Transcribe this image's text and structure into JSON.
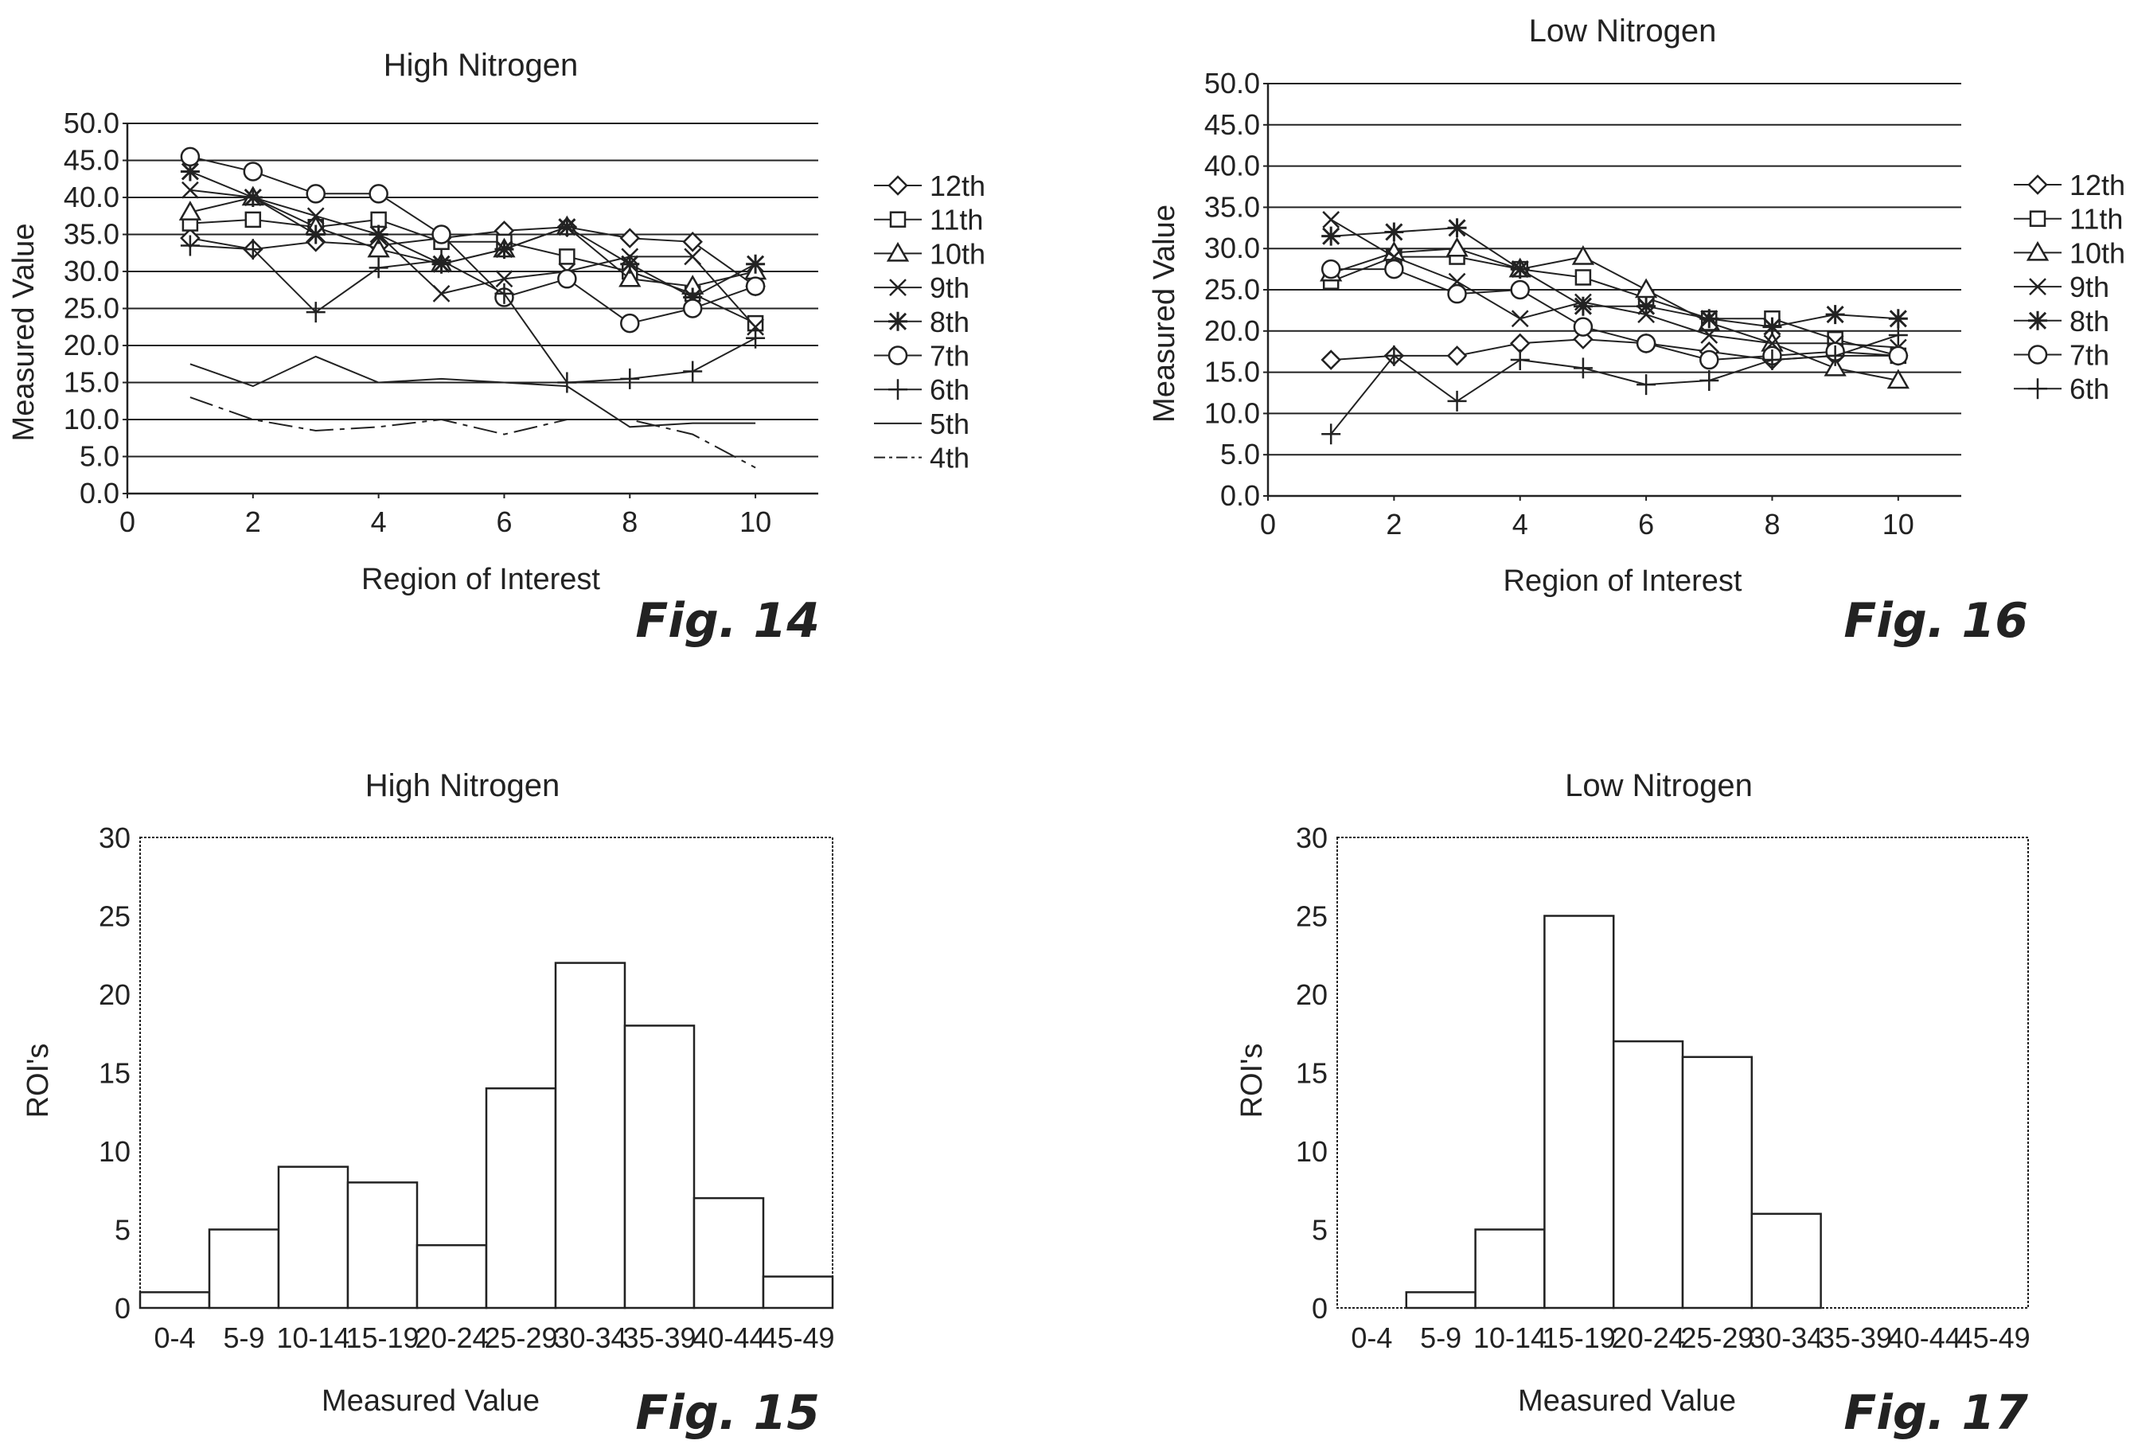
{
  "chart_data": [
    {
      "id": "fig14",
      "type": "line",
      "figure_label": "Fig. 14",
      "title": "High Nitrogen",
      "xlabel": "Region of Interest",
      "ylabel": "Measured Value",
      "xlim": [
        0,
        11
      ],
      "ylim": [
        0,
        50
      ],
      "xticks": [
        "0",
        "2",
        "4",
        "6",
        "8",
        "10"
      ],
      "xtick_values": [
        0,
        2,
        4,
        6,
        8,
        10
      ],
      "yticks": [
        "0.0",
        "5.0",
        "10.0",
        "15.0",
        "20.0",
        "25.0",
        "30.0",
        "35.0",
        "40.0",
        "45.0",
        "50.0"
      ],
      "ytick_values": [
        0,
        5,
        10,
        15,
        20,
        25,
        30,
        35,
        40,
        45,
        50
      ],
      "legend_position": "right",
      "grid": true,
      "x": [
        1,
        2,
        3,
        4,
        5,
        6,
        7,
        8,
        9,
        10
      ],
      "series": [
        {
          "name": "12th",
          "marker": "diamond",
          "values": [
            34.5,
            33.0,
            34.0,
            33.5,
            34.5,
            35.5,
            36.0,
            34.5,
            34.0,
            28.0
          ]
        },
        {
          "name": "11th",
          "marker": "square",
          "values": [
            36.5,
            37.0,
            36.0,
            37.0,
            34.0,
            34.0,
            32.0,
            30.0,
            27.0,
            23.0
          ]
        },
        {
          "name": "10th",
          "marker": "triangle",
          "values": [
            38.0,
            40.0,
            36.0,
            33.0,
            31.0,
            33.0,
            36.0,
            29.0,
            28.0,
            30.0
          ]
        },
        {
          "name": "9th",
          "marker": "x",
          "values": [
            41.0,
            40.0,
            37.5,
            35.0,
            27.0,
            29.0,
            30.0,
            32.0,
            32.0,
            22.5
          ]
        },
        {
          "name": "8th",
          "marker": "star",
          "values": [
            43.5,
            40.0,
            35.0,
            35.0,
            31.0,
            33.0,
            36.0,
            31.0,
            26.5,
            31.0
          ]
        },
        {
          "name": "7th",
          "marker": "circle",
          "values": [
            45.5,
            43.5,
            40.5,
            40.5,
            35.0,
            26.5,
            29.0,
            23.0,
            25.0,
            28.0
          ]
        },
        {
          "name": "6th",
          "marker": "plus",
          "values": [
            33.5,
            33.0,
            24.5,
            30.5,
            31.5,
            27.0,
            15.0,
            15.5,
            16.5,
            21.0
          ]
        },
        {
          "name": "5th",
          "marker": "none",
          "dash": "none",
          "values": [
            17.5,
            14.5,
            18.5,
            15.0,
            15.5,
            15.0,
            14.5,
            9.0,
            9.5,
            9.5
          ]
        },
        {
          "name": "4th",
          "marker": "none",
          "dash": "long-short",
          "values": [
            13.0,
            10.0,
            8.5,
            9.0,
            10.0,
            8.0,
            10.0,
            10.0,
            8.0,
            3.5
          ]
        }
      ]
    },
    {
      "id": "fig16",
      "type": "line",
      "figure_label": "Fig. 16",
      "title": "Low Nitrogen",
      "xlabel": "Region of Interest",
      "ylabel": "Measured Value",
      "xlim": [
        0,
        11
      ],
      "ylim": [
        0,
        50
      ],
      "xticks": [
        "0",
        "2",
        "4",
        "6",
        "8",
        "10"
      ],
      "xtick_values": [
        0,
        2,
        4,
        6,
        8,
        10
      ],
      "yticks": [
        "0.0",
        "5.0",
        "10.0",
        "15.0",
        "20.0",
        "25.0",
        "30.0",
        "35.0",
        "40.0",
        "45.0",
        "50.0"
      ],
      "ytick_values": [
        0,
        5,
        10,
        15,
        20,
        25,
        30,
        35,
        40,
        45,
        50
      ],
      "legend_position": "right",
      "grid": true,
      "x": [
        1,
        2,
        3,
        4,
        5,
        6,
        7,
        8,
        9,
        10
      ],
      "series": [
        {
          "name": "12th",
          "marker": "diamond",
          "values": [
            16.5,
            17.0,
            17.0,
            18.5,
            19.0,
            18.5,
            17.5,
            16.5,
            17.0,
            17.0
          ]
        },
        {
          "name": "11th",
          "marker": "square",
          "values": [
            26.0,
            29.0,
            29.0,
            27.5,
            26.5,
            24.0,
            21.5,
            21.5,
            19.0,
            17.0
          ]
        },
        {
          "name": "10th",
          "marker": "triangle",
          "values": [
            27.0,
            29.5,
            30.0,
            27.5,
            29.0,
            25.0,
            21.0,
            18.5,
            15.5,
            14.0
          ]
        },
        {
          "name": "9th",
          "marker": "x",
          "values": [
            33.5,
            29.0,
            26.0,
            21.5,
            23.5,
            22.0,
            19.5,
            18.5,
            18.5,
            18.0
          ]
        },
        {
          "name": "8th",
          "marker": "star",
          "values": [
            31.5,
            32.0,
            32.5,
            27.5,
            23.0,
            23.0,
            21.5,
            20.5,
            22.0,
            21.5
          ]
        },
        {
          "name": "7th",
          "marker": "circle",
          "values": [
            27.5,
            27.5,
            24.5,
            25.0,
            20.5,
            18.5,
            16.5,
            17.0,
            17.5,
            17.0
          ]
        },
        {
          "name": "6th",
          "marker": "plus",
          "values": [
            7.5,
            17.0,
            11.5,
            16.5,
            15.5,
            13.5,
            14.0,
            16.5,
            17.0,
            19.5
          ]
        }
      ]
    },
    {
      "id": "fig15",
      "type": "bar",
      "figure_label": "Fig. 15",
      "title": "High Nitrogen",
      "xlabel": "Measured Value",
      "ylabel": "ROI's",
      "ylim": [
        0,
        30
      ],
      "yticks": [
        "0",
        "5",
        "10",
        "15",
        "20",
        "25",
        "30"
      ],
      "ytick_values": [
        0,
        5,
        10,
        15,
        20,
        25,
        30
      ],
      "categories": [
        "0-4",
        "5-9",
        "10-14",
        "15-19",
        "20-24",
        "25-29",
        "30-34",
        "35-39",
        "40-44",
        "45-49"
      ],
      "values": [
        1,
        5,
        9,
        8,
        4,
        14,
        22,
        18,
        7,
        2
      ]
    },
    {
      "id": "fig17",
      "type": "bar",
      "figure_label": "Fig. 17",
      "title": "Low Nitrogen",
      "xlabel": "Measured Value",
      "ylabel": "ROI's",
      "ylim": [
        0,
        30
      ],
      "yticks": [
        "0",
        "5",
        "10",
        "15",
        "20",
        "25",
        "30"
      ],
      "ytick_values": [
        0,
        5,
        10,
        15,
        20,
        25,
        30
      ],
      "categories": [
        "0-4",
        "5-9",
        "10-14",
        "15-19",
        "20-24",
        "25-29",
        "30-34",
        "35-39",
        "40-44",
        "45-49"
      ],
      "values": [
        0,
        1,
        5,
        25,
        17,
        16,
        6,
        0,
        0,
        0
      ]
    }
  ]
}
